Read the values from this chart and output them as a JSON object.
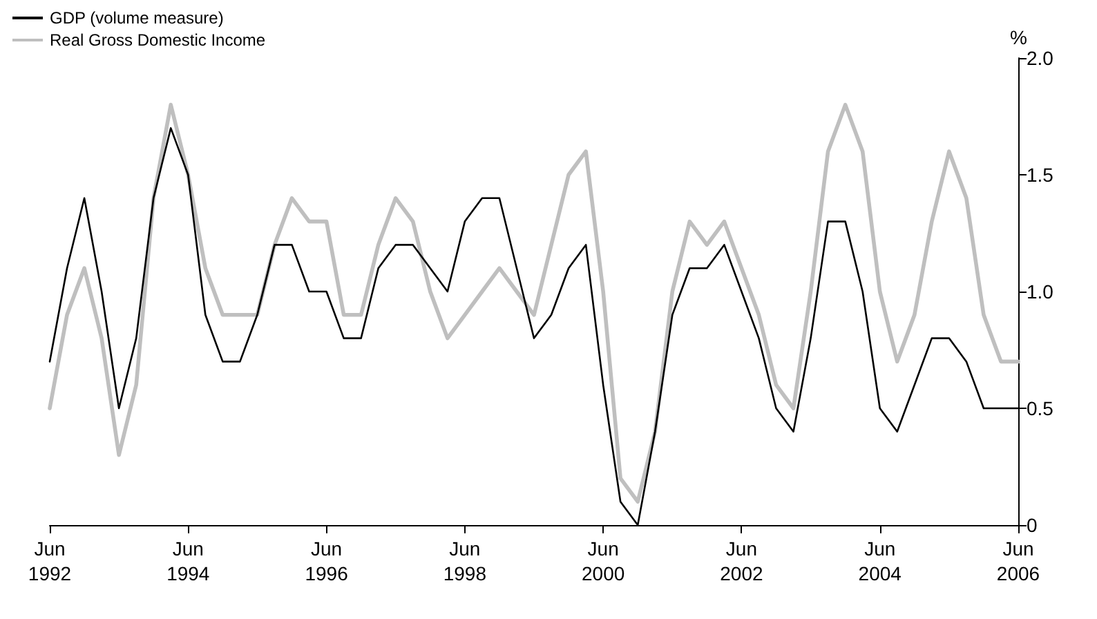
{
  "chart_data": {
    "type": "line",
    "ylabel": "%",
    "categories": [
      "Jun 1992",
      null,
      null,
      null,
      null,
      null,
      null,
      null,
      "Jun 1994",
      null,
      null,
      null,
      null,
      null,
      null,
      null,
      "Jun 1996",
      null,
      null,
      null,
      null,
      null,
      null,
      null,
      "Jun 1998",
      null,
      null,
      null,
      null,
      null,
      null,
      null,
      "Jun 2000",
      null,
      null,
      null,
      null,
      null,
      null,
      null,
      "Jun 2002",
      null,
      null,
      null,
      null,
      null,
      null,
      null,
      "Jun 2004",
      null,
      null,
      null,
      null,
      null,
      null,
      null,
      "Jun 2006"
    ],
    "series": [
      {
        "name": "GDP (volume measure)",
        "color": "#000000",
        "values": [
          0.7,
          1.1,
          1.4,
          1.0,
          0.5,
          0.8,
          1.4,
          1.7,
          1.5,
          0.9,
          0.7,
          0.7,
          0.9,
          1.2,
          1.2,
          1.0,
          1.0,
          0.8,
          0.8,
          1.1,
          1.2,
          1.2,
          1.1,
          1.0,
          1.3,
          1.4,
          1.4,
          1.1,
          0.8,
          0.9,
          1.1,
          1.2,
          0.6,
          0.1,
          0.0,
          0.4,
          0.9,
          1.1,
          1.1,
          1.2,
          1.0,
          0.8,
          0.5,
          0.4,
          0.8,
          1.3,
          1.3,
          1.0,
          0.5,
          0.4,
          0.6,
          0.8,
          0.8,
          0.7,
          0.5,
          0.5,
          0.5
        ]
      },
      {
        "name": "Real Gross Domestic Income",
        "color": "#bfbfbf",
        "values": [
          0.5,
          0.9,
          1.1,
          0.8,
          0.3,
          0.6,
          1.4,
          1.8,
          1.5,
          1.1,
          0.9,
          0.9,
          0.9,
          1.2,
          1.4,
          1.3,
          1.3,
          0.9,
          0.9,
          1.2,
          1.4,
          1.3,
          1.0,
          0.8,
          0.9,
          1.0,
          1.1,
          1.0,
          0.9,
          1.2,
          1.5,
          1.6,
          1.0,
          0.2,
          0.1,
          0.4,
          1.0,
          1.3,
          1.2,
          1.3,
          1.1,
          0.9,
          0.6,
          0.5,
          1.0,
          1.6,
          1.8,
          1.6,
          1.0,
          0.7,
          0.9,
          1.3,
          1.6,
          1.4,
          0.9,
          0.7,
          0.7
        ]
      }
    ],
    "ylim": [
      0,
      2
    ],
    "yticks": [
      0,
      0.5,
      {
        "value": 1,
        "label": "1.0"
      },
      1.5,
      {
        "value": 2,
        "label": "2.0"
      }
    ],
    "grid": false,
    "legend": "top left",
    "marker": "none",
    "line_style": "solid"
  }
}
